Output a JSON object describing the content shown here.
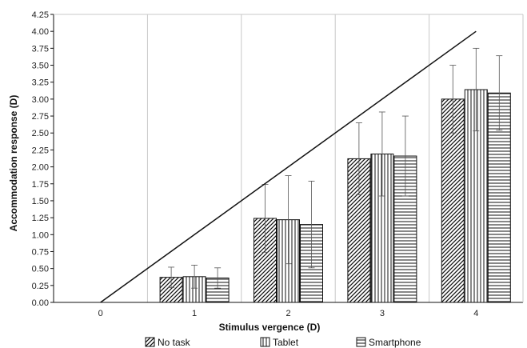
{
  "chart_data": {
    "type": "bar",
    "xlabel": "Stimulus vergence (D)",
    "ylabel": "Accommodation response (D)",
    "x_ticks": [
      "0",
      "1",
      "2",
      "3",
      "4"
    ],
    "categories": [
      "1",
      "2",
      "3",
      "4"
    ],
    "ylim": [
      0,
      4.25
    ],
    "y_ticks": [
      "0.00",
      "0.25",
      "0.50",
      "0.75",
      "1.00",
      "1.25",
      "1.50",
      "1.75",
      "2.00",
      "2.25",
      "2.50",
      "2.75",
      "3.00",
      "3.25",
      "3.50",
      "3.75",
      "4.00",
      "4.25"
    ],
    "grid": "vertical",
    "legend_position": "bottom",
    "series": [
      {
        "name": "No task",
        "pattern": "diagonal",
        "values": [
          0.37,
          1.24,
          2.12,
          3.0
        ],
        "error": [
          0.15,
          0.5,
          0.53,
          0.5
        ]
      },
      {
        "name": "Tablet",
        "pattern": "vertical",
        "values": [
          0.38,
          1.22,
          2.19,
          3.14
        ],
        "error": [
          0.17,
          0.65,
          0.62,
          0.61
        ]
      },
      {
        "name": "Smartphone",
        "pattern": "horizontal",
        "values": [
          0.36,
          1.15,
          2.16,
          3.09
        ],
        "error": [
          0.15,
          0.64,
          0.59,
          0.55
        ]
      }
    ],
    "reference_line": {
      "x": [
        0,
        4
      ],
      "y": [
        0,
        4
      ]
    }
  }
}
